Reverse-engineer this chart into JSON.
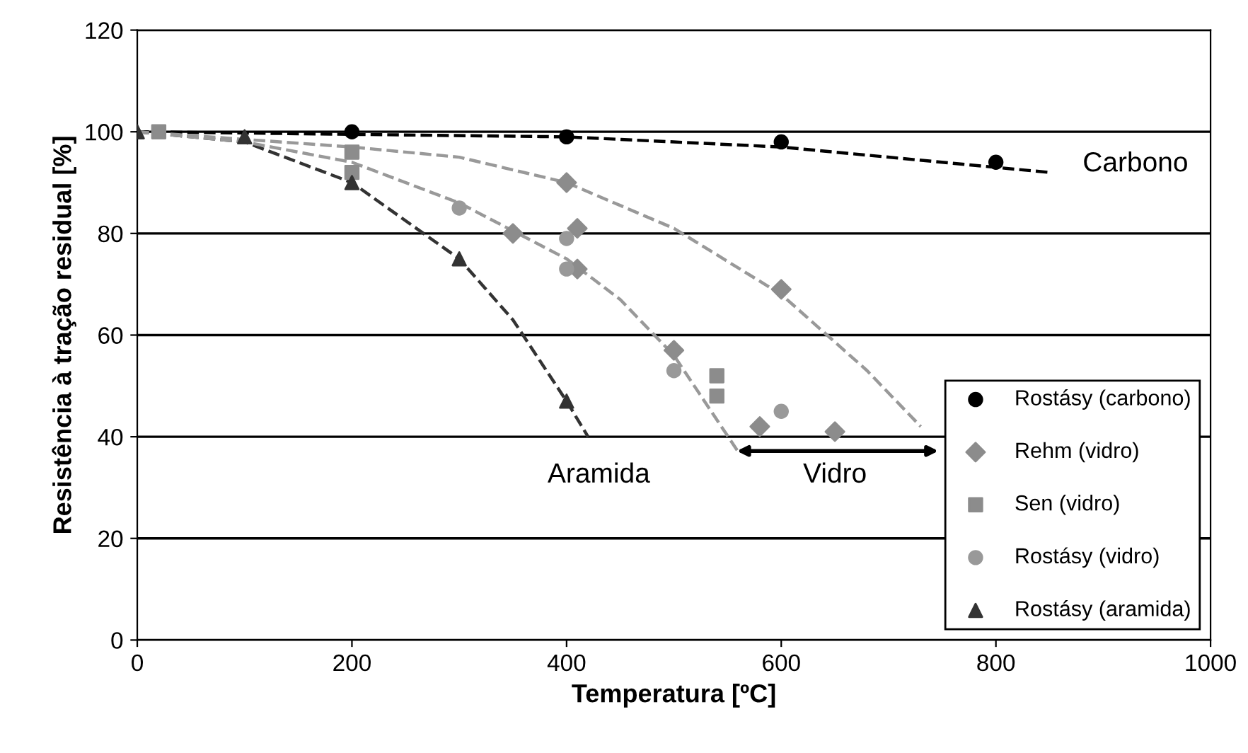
{
  "chart_data": {
    "type": "scatter",
    "xlabel": "Temperatura [ºC]",
    "ylabel": "Resistência à tração residual [%]",
    "xlim": [
      0,
      1000
    ],
    "ylim": [
      0,
      120
    ],
    "xticks": [
      0,
      200,
      400,
      600,
      800,
      1000
    ],
    "yticks": [
      0,
      20,
      40,
      60,
      80,
      100,
      120
    ],
    "grid": "y",
    "legend": "bottom right",
    "series": [
      {
        "name": "Rostásy (carbono)",
        "color": "#000000",
        "marker": "circle",
        "x": [
          200,
          400,
          600,
          800
        ],
        "values": [
          100,
          99,
          98,
          94
        ]
      },
      {
        "name": "Rehm (vidro)",
        "color": "#8c8c8c",
        "marker": "diamond",
        "x": [
          350,
          400,
          410,
          410,
          500,
          580,
          600,
          650
        ],
        "values": [
          80,
          90,
          81,
          73,
          57,
          42,
          69,
          41
        ]
      },
      {
        "name": "Sen (vidro)",
        "color": "#8c8c8c",
        "marker": "square",
        "x": [
          20,
          200,
          200,
          540,
          540
        ],
        "values": [
          100,
          96,
          92,
          52,
          48
        ]
      },
      {
        "name": "Rostásy (vidro)",
        "color": "#999999",
        "marker": "circle",
        "x": [
          300,
          400,
          400,
          500,
          600
        ],
        "values": [
          85,
          79,
          73,
          53,
          45
        ]
      },
      {
        "name": "Rostásy (aramida)",
        "color": "#333333",
        "marker": "triangle",
        "x": [
          0,
          100,
          200,
          300,
          400
        ],
        "values": [
          100,
          99,
          90,
          75,
          47
        ]
      },
      {
        "type": "line",
        "line_style": "dashed",
        "color": "#000000",
        "x": [
          0,
          400,
          600,
          850
        ],
        "values": [
          100,
          99,
          97,
          92
        ]
      },
      {
        "type": "line",
        "line_style": "dashed",
        "color": "#333333",
        "x": [
          0,
          100,
          200,
          300,
          350,
          400,
          420
        ],
        "values": [
          100,
          98,
          90,
          75,
          63,
          47,
          40
        ]
      },
      {
        "type": "line",
        "line_style": "dashed",
        "color": "#999999",
        "x": [
          0,
          200,
          300,
          400,
          500,
          600,
          680,
          730
        ],
        "values": [
          100,
          97,
          95,
          90,
          81,
          68,
          53,
          42
        ]
      },
      {
        "type": "line",
        "line_style": "dashed",
        "color": "#999999",
        "x": [
          0,
          100,
          200,
          300,
          400,
          450,
          500,
          560
        ],
        "values": [
          100,
          98,
          94,
          86,
          75,
          67,
          56,
          37
        ]
      }
    ],
    "annotations": [
      "Carbono",
      "Aramida",
      "Vidro"
    ]
  }
}
